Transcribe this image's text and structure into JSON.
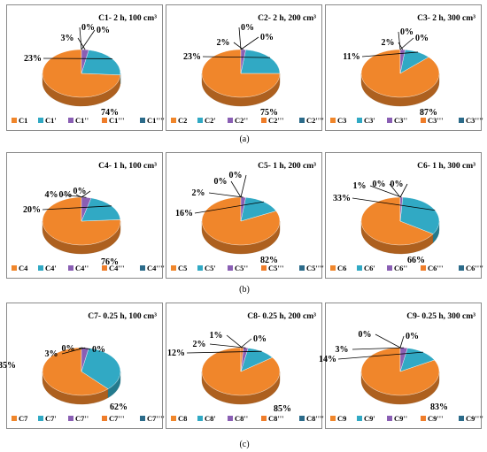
{
  "figure": {
    "row_labels": [
      "(a)",
      "(b)",
      "(c)"
    ]
  },
  "colors": [
    "#f0862b",
    "#31a9c4",
    "#8a5fb4",
    "#ef7d2a",
    "#2c6b8a"
  ],
  "chart_data": [
    {
      "type": "pie",
      "title": "C1- 2 h, 100 cm³",
      "labels": [
        "C1",
        "C1'",
        "C1''",
        "C1'''",
        "C1''''"
      ],
      "values": [
        74,
        23,
        3,
        0,
        0
      ],
      "value_labels": [
        "74%",
        "23%",
        "3%",
        "0%",
        "0%"
      ],
      "legend_position": "bottom"
    },
    {
      "type": "pie",
      "title": "C2- 2 h, 200 cm³",
      "labels": [
        "C2",
        "C2'",
        "C2''",
        "C2'''",
        "C2''''"
      ],
      "values": [
        75,
        23,
        2,
        0,
        0
      ],
      "value_labels": [
        "75%",
        "23%",
        "2%",
        "0%",
        "0%"
      ],
      "legend_position": "bottom"
    },
    {
      "type": "pie",
      "title": "C3- 2 h, 300 cm³",
      "labels": [
        "C3",
        "C3'",
        "C3''",
        "C3'''",
        "C3''''"
      ],
      "values": [
        87,
        11,
        2,
        0,
        0
      ],
      "value_labels": [
        "87%",
        "11%",
        "2%",
        "0%",
        "0%"
      ],
      "legend_position": "bottom"
    },
    {
      "type": "pie",
      "title": "C4- 1 h, 100 cm³",
      "labels": [
        "C4",
        "C4'",
        "C4''",
        "C4'''",
        "C4''''"
      ],
      "values": [
        76,
        20,
        4,
        0,
        0
      ],
      "value_labels": [
        "76%",
        "20%",
        "4%",
        "0%",
        "0%"
      ],
      "legend_position": "bottom"
    },
    {
      "type": "pie",
      "title": "C5- 1 h, 200 cm³",
      "labels": [
        "C5",
        "C5'",
        "C5''",
        "C5'''",
        "C5''''"
      ],
      "values": [
        82,
        16,
        2,
        0,
        0
      ],
      "value_labels": [
        "82%",
        "16%",
        "2%",
        "0%",
        "0%"
      ],
      "legend_position": "bottom"
    },
    {
      "type": "pie",
      "title": "C6- 1 h, 300 cm³",
      "labels": [
        "C6",
        "C6'",
        "C6''",
        "C6'''",
        "C6''''"
      ],
      "values": [
        66,
        33,
        1,
        0,
        0
      ],
      "value_labels": [
        "66%",
        "33%",
        "1%",
        "0%",
        "0%"
      ],
      "legend_position": "bottom"
    },
    {
      "type": "pie",
      "title": "C7- 0.25 h, 100 cm³",
      "labels": [
        "C7",
        "C7'",
        "C7''",
        "C7'''",
        "C7''''"
      ],
      "values": [
        62,
        35,
        3,
        0,
        0
      ],
      "value_labels": [
        "62%",
        "35%",
        "3%",
        "0%",
        "0%"
      ],
      "legend_position": "bottom"
    },
    {
      "type": "pie",
      "title": "C8- 0.25 h, 200 cm³",
      "labels": [
        "C8",
        "C8'",
        "C8''",
        "C8'''",
        "C8''''"
      ],
      "values": [
        85,
        12,
        2,
        1,
        0
      ],
      "value_labels": [
        "85%",
        "12%",
        "2%",
        "1%",
        "0%"
      ],
      "legend_position": "bottom"
    },
    {
      "type": "pie",
      "title": "C9- 0.25 h, 300 cm³",
      "labels": [
        "C9",
        "C9'",
        "C9''",
        "C9'''",
        "C9''''"
      ],
      "values": [
        83,
        14,
        3,
        0,
        0
      ],
      "value_labels": [
        "83%",
        "14%",
        "3%",
        "0%",
        "0%"
      ],
      "legend_position": "bottom"
    }
  ]
}
